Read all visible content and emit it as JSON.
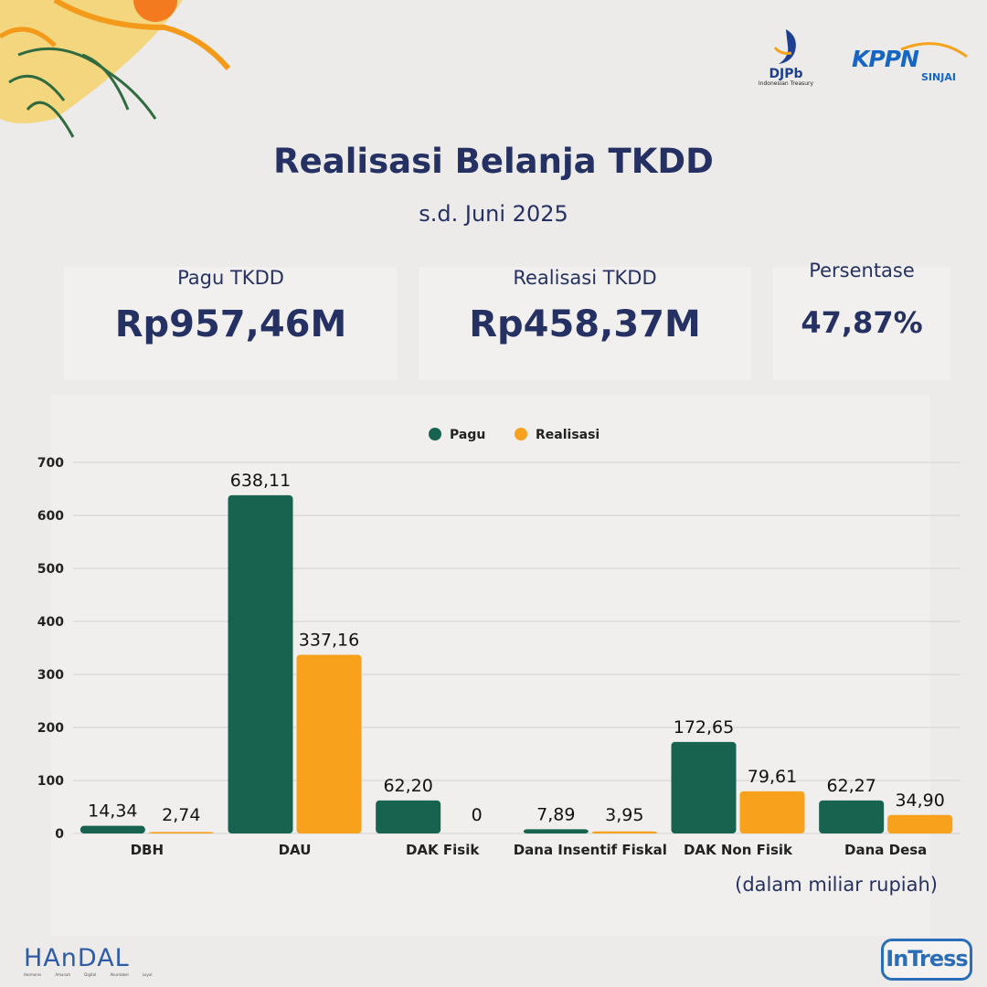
{
  "brand": {
    "djpb_name": "DJPb",
    "djpb_sub": "Indonesian Treasury",
    "kppn_name": "KPPN",
    "kppn_sub": "SINJAI",
    "handal_name": "HAnDAL",
    "handal_tagline": "Harmonis Amanah Digital Akuntabel Loyal",
    "intress_name": "InTress"
  },
  "header": {
    "title": "Realisasi Belanja TKDD",
    "subtitle": "s.d. Juni 2025"
  },
  "summary": {
    "pagu_label": "Pagu TKDD",
    "pagu_value": "Rp957,46M",
    "realisasi_label": "Realisasi TKDD",
    "realisasi_value": "Rp458,37M",
    "persentase_label": "Persentase",
    "persentase_value": "47,87%"
  },
  "colors": {
    "pagu": "#17634f",
    "realisasi": "#f7a11d",
    "navy": "#253163"
  },
  "chart_data": {
    "type": "bar",
    "categories": [
      "DBH",
      "DAU",
      "DAK Fisik",
      "Dana Insentif Fiskal",
      "DAK Non Fisik",
      "Dana Desa"
    ],
    "series": [
      {
        "name": "Pagu",
        "values": [
          14.34,
          638.11,
          62.2,
          7.89,
          172.65,
          62.27
        ],
        "labels": [
          "14,34",
          "638,11",
          "62,20",
          "7,89",
          "172,65",
          "62,27"
        ]
      },
      {
        "name": "Realisasi",
        "values": [
          2.74,
          337.16,
          0,
          3.95,
          79.61,
          34.9
        ],
        "labels": [
          "2,74",
          "337,16",
          "0",
          "3,95",
          "79,61",
          "34,90"
        ]
      }
    ],
    "ylim": [
      0,
      700
    ],
    "yticks": [
      0,
      100,
      200,
      300,
      400,
      500,
      600,
      700
    ],
    "grid": true,
    "legend": "top-center",
    "unit_note": "(dalam miliar rupiah)"
  }
}
